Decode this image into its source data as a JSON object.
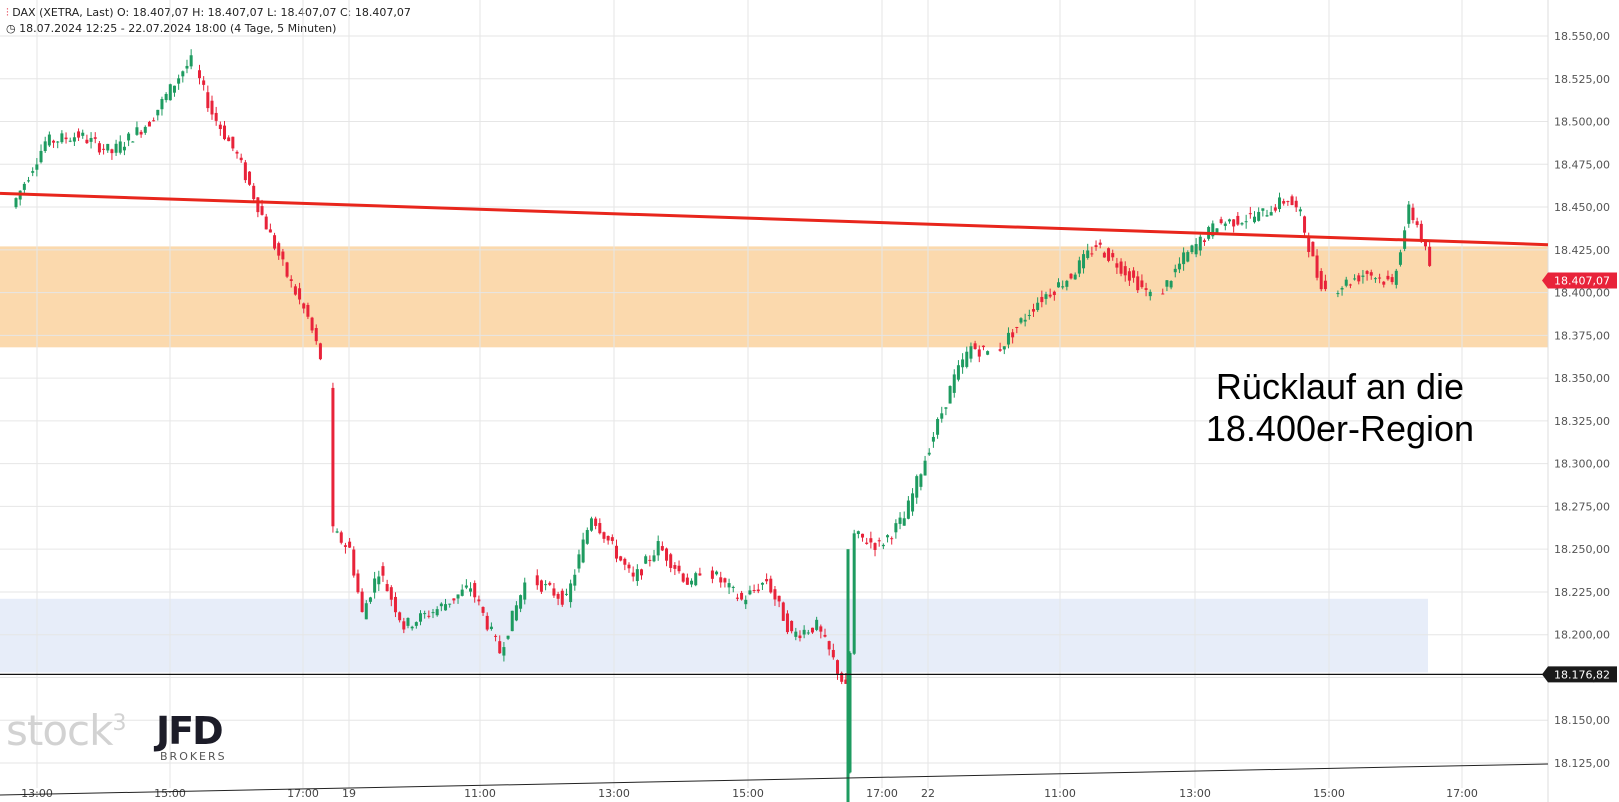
{
  "header": {
    "instrument": "DAX (XETRA, Last)",
    "open": "O: 18.407,07",
    "high": "H: 18.407,07",
    "low": "L: 18.407,07",
    "close": "C: 18.407,07",
    "range": "18.07.2024 12:25 - 22.07.2024 18:00",
    "period": "(4 Tage, 5 Minuten)"
  },
  "annotation": [
    "Rücklauf an die",
    "18.400er-Region"
  ],
  "watermark": {
    "stock": "stock",
    "sup": "3",
    "jfd": "JFD",
    "brokers": "BROKERS"
  },
  "chart_data": {
    "type": "candlestick",
    "ylim": [
      18117,
      18562
    ],
    "y_ticks": [
      18125,
      18150,
      18175,
      18200,
      18225,
      18250,
      18275,
      18300,
      18325,
      18350,
      18375,
      18400,
      18425,
      18450,
      18475,
      18500,
      18525,
      18550
    ],
    "y_tick_labels": [
      "18.125,00",
      "18.150,00",
      "18.175,00",
      "18.200,00",
      "18.225,00",
      "18.250,00",
      "18.275,00",
      "18.300,00",
      "18.325,00",
      "18.350,00",
      "18.375,00",
      "18.400,00",
      "18.425,00",
      "18.450,00",
      "18.475,00",
      "18.500,00",
      "18.525,00",
      "18.550,00"
    ],
    "x_tick_labels": [
      "13:00",
      "15:00",
      "17:00",
      "19",
      "11:00",
      "13:00",
      "15:00",
      "17:00",
      "22",
      "11:00",
      "13:00",
      "15:00",
      "17:00"
    ],
    "price_labels": [
      {
        "value": 18407.07,
        "text": "18.407,07",
        "color": "#e8233a"
      },
      {
        "value": 18176.82,
        "text": "18.176,82",
        "color": "#1a1a1a"
      }
    ],
    "horizontal_line": 18176.82,
    "zones": [
      {
        "name": "resistance",
        "y_from": 18368,
        "y_to": 18427,
        "color": "#f9c98a"
      },
      {
        "name": "support",
        "y_from": 18178,
        "y_to": 18221,
        "color": "#d3def4"
      }
    ],
    "trendlines": [
      {
        "from": {
          "bar": 0,
          "y": 18458
        },
        "to": {
          "bar": 370,
          "y": 18428
        },
        "color": "#e8261c"
      }
    ],
    "colors": {
      "up": "#1e9b60",
      "down": "#e8233a",
      "grid": "#e6e6e6"
    },
    "segments": [
      {
        "bars": 43,
        "points": [
          [
            0,
            18450
          ],
          [
            8,
            18488
          ],
          [
            16,
            18492
          ],
          [
            24,
            18482
          ],
          [
            33,
            18500
          ],
          [
            41,
            18530
          ],
          [
            43,
            18535
          ]
        ]
      },
      {
        "bars": 30,
        "points": [
          [
            0,
            18530
          ],
          [
            4,
            18505
          ],
          [
            10,
            18480
          ],
          [
            16,
            18445
          ],
          [
            22,
            18410
          ],
          [
            27,
            18385
          ],
          [
            30,
            18362
          ]
        ]
      },
      {
        "bars": 47,
        "points": [
          [
            0,
            18345
          ],
          [
            1,
            18260
          ],
          [
            5,
            18250
          ],
          [
            8,
            18212
          ],
          [
            12,
            18238
          ],
          [
            18,
            18205
          ],
          [
            26,
            18215
          ],
          [
            34,
            18228
          ],
          [
            41,
            18190
          ],
          [
            47,
            18230
          ]
        ]
      },
      {
        "bars": 40,
        "points": [
          [
            0,
            18232
          ],
          [
            8,
            18220
          ],
          [
            14,
            18270
          ],
          [
            18,
            18255
          ],
          [
            24,
            18232
          ],
          [
            30,
            18252
          ],
          [
            38,
            18228
          ],
          [
            40,
            18238
          ]
        ]
      },
      {
        "bars": 33,
        "points": [
          [
            0,
            18238
          ],
          [
            8,
            18220
          ],
          [
            14,
            18232
          ],
          [
            20,
            18200
          ],
          [
            26,
            18205
          ],
          [
            30,
            18185
          ],
          [
            33,
            18168
          ]
        ]
      },
      {
        "bars": 34,
        "points": [
          [
            0,
            18120
          ],
          [
            2,
            18258
          ],
          [
            8,
            18252
          ],
          [
            14,
            18268
          ],
          [
            20,
            18310
          ],
          [
            26,
            18350
          ],
          [
            30,
            18368
          ],
          [
            34,
            18365
          ]
        ]
      },
      {
        "bars": 37,
        "points": [
          [
            0,
            18365
          ],
          [
            10,
            18395
          ],
          [
            18,
            18410
          ],
          [
            24,
            18428
          ],
          [
            30,
            18415
          ],
          [
            37,
            18398
          ]
        ]
      },
      {
        "bars": 40,
        "points": [
          [
            0,
            18398
          ],
          [
            6,
            18420
          ],
          [
            14,
            18440
          ],
          [
            24,
            18445
          ],
          [
            31,
            18455
          ],
          [
            34,
            18445
          ],
          [
            38,
            18410
          ],
          [
            40,
            18402
          ]
        ]
      },
      {
        "bars": 23,
        "points": [
          [
            0,
            18402
          ],
          [
            8,
            18412
          ],
          [
            14,
            18405
          ],
          [
            18,
            18448
          ],
          [
            20,
            18440
          ],
          [
            23,
            18416
          ]
        ]
      }
    ],
    "session_gaps": [
      3,
      1,
      2,
      2,
      2,
      0,
      2,
      2,
      2
    ],
    "gap_bars": [
      1,
      2
    ]
  }
}
